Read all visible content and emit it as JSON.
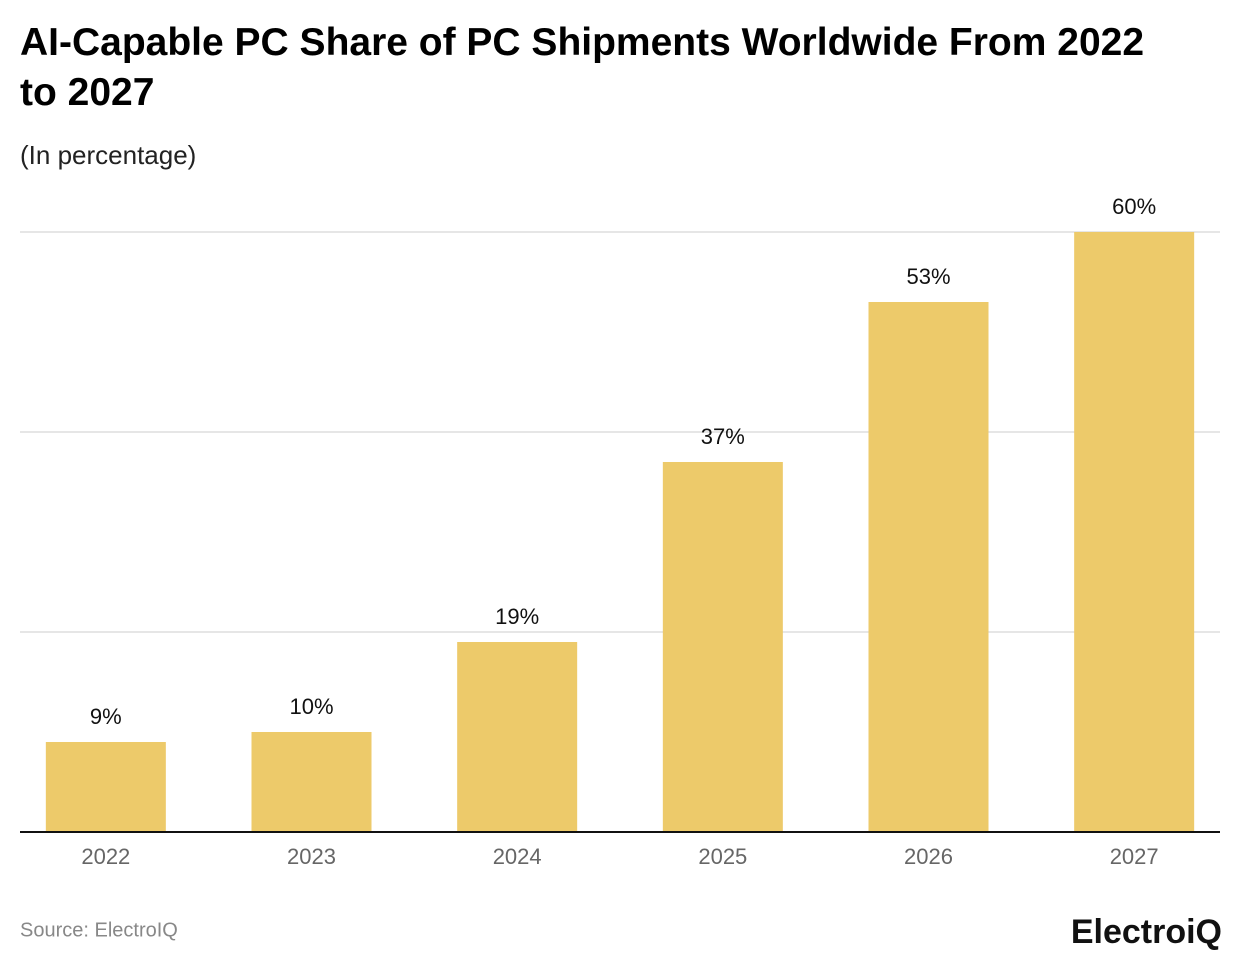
{
  "chart_data": {
    "type": "bar",
    "title": "AI-Capable PC Share of PC Shipments Worldwide From 2022 to 2027",
    "subtitle": "(In percentage)",
    "categories": [
      "2022",
      "2023",
      "2024",
      "2025",
      "2026",
      "2027"
    ],
    "values": [
      9,
      10,
      19,
      37,
      53,
      60
    ],
    "value_labels": [
      "9%",
      "10%",
      "19%",
      "37%",
      "53%",
      "60%"
    ],
    "color": "#EDCA6A",
    "ylim": [
      0,
      60
    ],
    "yticks": [
      0,
      20,
      40,
      60
    ],
    "grid": true,
    "source": "Source: ElectroIQ",
    "logo": "ElectroiQ"
  }
}
